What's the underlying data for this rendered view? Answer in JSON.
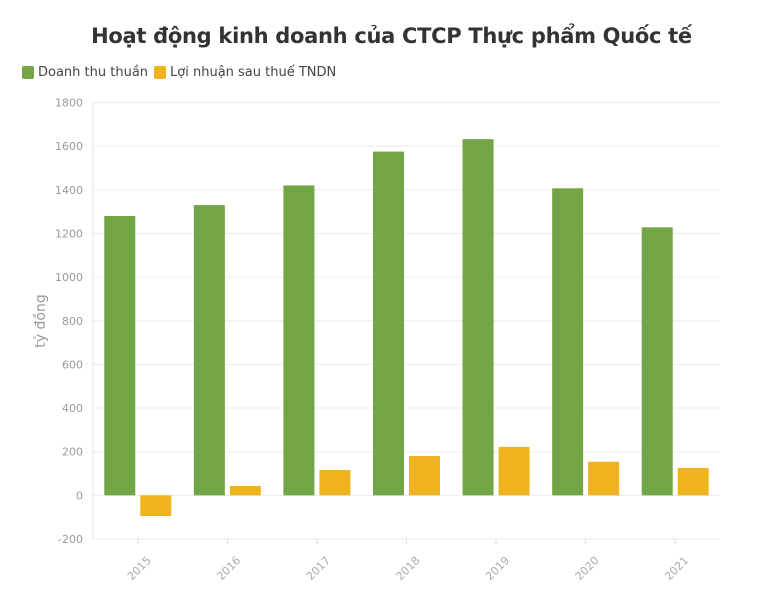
{
  "chart_data": {
    "type": "bar",
    "title": "Hoạt động kinh doanh của CTCP Thực phẩm Quốc tế",
    "xlabel": "",
    "ylabel": "tỷ đồng",
    "categories": [
      "2015",
      "2016",
      "2017",
      "2018",
      "2019",
      "2020",
      "2021"
    ],
    "series": [
      {
        "name": "Doanh thu thuần",
        "color": "#72a545",
        "values": [
          1280,
          1330,
          1420,
          1575,
          1632,
          1407,
          1228
        ]
      },
      {
        "name": "Lợi nhuận sau thuế TNDN",
        "color": "#efb31f",
        "values": [
          -95,
          43,
          116,
          180,
          222,
          154,
          125
        ]
      }
    ],
    "ylim": [
      -200,
      1800
    ],
    "yticks": [
      "-200",
      "0",
      "200",
      "400",
      "600",
      "800",
      "1000",
      "1200",
      "1400",
      "1600",
      "1800"
    ],
    "grid": true,
    "legend": "top-left"
  }
}
